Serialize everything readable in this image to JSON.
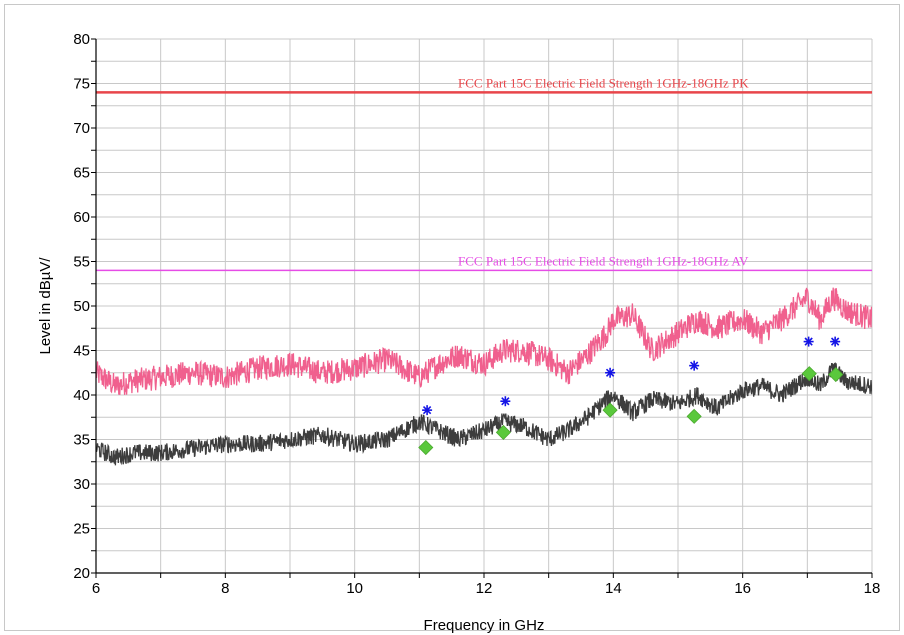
{
  "chart_data": {
    "type": "line",
    "xlabel": "Frequency in GHz",
    "ylabel": "Level in dBµV/",
    "xlim": [
      6,
      18
    ],
    "ylim": [
      20,
      80
    ],
    "x_ticks": [
      "6",
      "8",
      "10",
      "12",
      "14",
      "16",
      "18"
    ],
    "y_ticks": [
      "20",
      "25",
      "30",
      "35",
      "40",
      "45",
      "50",
      "55",
      "60",
      "65",
      "70",
      "75",
      "80"
    ],
    "grid": true,
    "limit_lines": [
      {
        "label": "FCC Part 15C Electric Field Strength 1GHz-18GHz PK",
        "y": 74,
        "color": "#e8454a"
      },
      {
        "label": "FCC Part 15C Electric Field Strength 1GHz-18GHz AV",
        "y": 54,
        "color": "#e64ce6"
      }
    ],
    "series": [
      {
        "color": "#f0608e",
        "noise": 1.4,
        "x": [
          6.0,
          6.1,
          6.3,
          6.5,
          7.0,
          7.5,
          8.0,
          8.5,
          9.0,
          9.5,
          10.0,
          10.5,
          11.0,
          11.3,
          11.6,
          12.0,
          12.3,
          12.6,
          13.0,
          13.3,
          13.6,
          13.9,
          14.0,
          14.3,
          14.6,
          15.0,
          15.3,
          15.6,
          16.0,
          16.3,
          16.6,
          17.0,
          17.2,
          17.4,
          17.6,
          18.0
        ],
        "y": [
          42.5,
          42.0,
          41.0,
          41.5,
          42.0,
          42.5,
          42.0,
          43.0,
          43.5,
          42.5,
          43.0,
          44.0,
          42.0,
          43.5,
          44.5,
          43.5,
          45.0,
          45.0,
          44.0,
          42.5,
          44.5,
          47.0,
          48.5,
          49.0,
          45.0,
          47.0,
          48.5,
          47.5,
          48.5,
          47.0,
          48.5,
          51.0,
          48.5,
          51.0,
          49.5,
          48.5
        ]
      },
      {
        "color": "#3d3d3d",
        "noise": 1.0,
        "x": [
          6.0,
          6.3,
          6.6,
          7.0,
          7.5,
          8.0,
          8.5,
          9.0,
          9.5,
          10.0,
          10.5,
          11.0,
          11.3,
          11.6,
          12.0,
          12.3,
          12.6,
          13.0,
          13.3,
          13.6,
          13.9,
          14.0,
          14.3,
          14.6,
          15.0,
          15.3,
          15.6,
          16.0,
          16.3,
          16.6,
          17.0,
          17.2,
          17.4,
          17.6,
          18.0
        ],
        "y": [
          34.0,
          33.0,
          33.5,
          33.5,
          34.0,
          34.5,
          34.5,
          35.0,
          35.5,
          34.5,
          35.0,
          37.0,
          36.0,
          35.0,
          36.0,
          37.0,
          36.5,
          35.0,
          36.0,
          37.5,
          39.5,
          40.0,
          38.0,
          39.5,
          39.0,
          40.0,
          38.5,
          40.5,
          41.0,
          40.0,
          42.0,
          41.0,
          43.0,
          41.5,
          41.0
        ]
      }
    ],
    "peak_markers": {
      "color": "#1414e6",
      "marker": "asterisk",
      "x": [
        11.12,
        12.33,
        13.95,
        15.25,
        17.02,
        17.43
      ],
      "y": [
        38.3,
        39.3,
        42.5,
        43.3,
        46.0,
        46.0
      ]
    },
    "avg_markers": {
      "color": "#5ac83c",
      "marker": "diamond",
      "x": [
        11.1,
        12.3,
        13.95,
        15.25,
        17.03,
        17.44
      ],
      "y": [
        34.1,
        35.8,
        38.3,
        37.6,
        42.4,
        42.3
      ]
    }
  }
}
